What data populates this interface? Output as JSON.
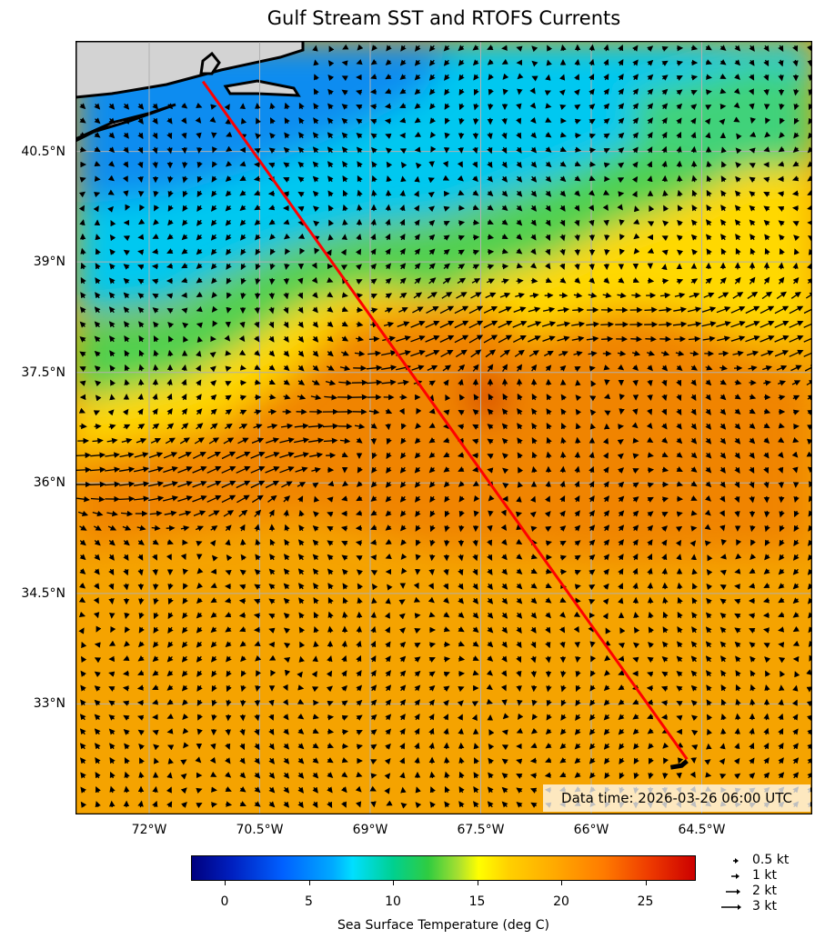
{
  "title": "Gulf Stream SST and RTOFS Currents",
  "map": {
    "lon_range": [
      -73.0,
      -63.0
    ],
    "lat_range": [
      31.5,
      42.0
    ],
    "lat_labels": [
      "40.5°N",
      "39°N",
      "37.5°N",
      "36°N",
      "34.5°N",
      "33°N"
    ],
    "lat_values": [
      40.5,
      39.0,
      37.5,
      36.0,
      34.5,
      33.0
    ],
    "lon_labels": [
      "72°W",
      "70.5°W",
      "69°W",
      "67.5°W",
      "66°W",
      "64.5°W"
    ],
    "lon_values": [
      -72.0,
      -70.5,
      -69.0,
      -67.5,
      -66.0,
      -64.5
    ],
    "route": {
      "start": [
        -71.27,
        41.45
      ],
      "end": [
        -64.7,
        32.25
      ]
    },
    "data_time": "Data time: 2026-03-26 06:00 UTC",
    "colors": {
      "land": "#d3d3d3",
      "route": "#ff0000",
      "grid": "#b0b0b0"
    }
  },
  "colorbar": {
    "label": "Sea Surface Temperature (deg C)",
    "min": -2,
    "max": 28,
    "ticks": [
      0,
      5,
      10,
      15,
      20,
      25
    ],
    "tick_labels": [
      "0",
      "5",
      "10",
      "15",
      "20",
      "25"
    ]
  },
  "legend": [
    {
      "label": "0.5 kt",
      "speed": 0.5
    },
    {
      "label": "1 kt",
      "speed": 1
    },
    {
      "label": "2 kt",
      "speed": 2
    },
    {
      "label": "3 kt",
      "speed": 3
    }
  ]
}
